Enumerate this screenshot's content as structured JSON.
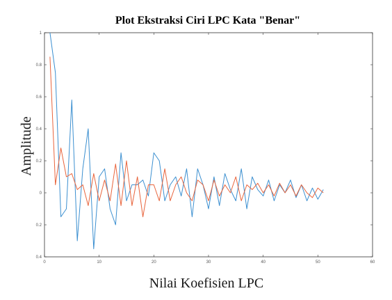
{
  "chart_data": {
    "type": "line",
    "title": "Plot Ekstraksi Ciri LPC Kata \"Benar\"",
    "xlabel": "Nilai Koefisien LPC",
    "ylabel": "Amplitude",
    "xlim": [
      0,
      60
    ],
    "ylim": [
      -0.4,
      1
    ],
    "xticks": [
      0,
      10,
      20,
      30,
      40,
      50,
      60
    ],
    "xtick_labels": [
      "0",
      "10",
      "20",
      "30",
      "40",
      "50",
      "60"
    ],
    "yticks": [
      1,
      0.8,
      0.6,
      0.4,
      0.2,
      0,
      -0.2,
      -0.4
    ],
    "ytick_labels": [
      "1",
      "0.8",
      "0.6",
      "0.4",
      "0.2",
      "0",
      "0.2",
      "0.4"
    ],
    "grid": false,
    "series": [
      {
        "color": "#3b8fd0",
        "x": [
          1,
          2,
          3,
          4,
          5,
          6,
          7,
          8,
          9,
          10,
          11,
          12,
          13,
          14,
          15,
          16,
          17,
          18,
          19,
          20,
          21,
          22,
          23,
          24,
          25,
          26,
          27,
          28,
          29,
          30,
          31,
          32,
          33,
          34,
          35,
          36,
          37,
          38,
          39,
          40,
          41,
          42,
          43,
          44,
          45,
          46,
          47,
          48,
          49,
          50,
          51
        ],
        "values": [
          1.0,
          0.75,
          -0.15,
          -0.1,
          0.58,
          -0.3,
          0.15,
          0.4,
          -0.35,
          0.1,
          0.15,
          -0.1,
          -0.2,
          0.25,
          -0.05,
          0.05,
          0.05,
          0.08,
          -0.02,
          0.25,
          0.2,
          -0.05,
          0.05,
          0.1,
          -0.02,
          0.15,
          -0.15,
          0.15,
          0.05,
          -0.1,
          0.1,
          -0.08,
          0.12,
          0.02,
          -0.05,
          0.15,
          -0.1,
          0.1,
          0.02,
          -0.02,
          0.08,
          -0.05,
          0.05,
          0.0,
          0.08,
          -0.03,
          0.05,
          -0.05,
          0.03,
          -0.04,
          0.02
        ]
      },
      {
        "color": "#e8643c",
        "x": [
          1,
          2,
          3,
          4,
          5,
          6,
          7,
          8,
          9,
          10,
          11,
          12,
          13,
          14,
          15,
          16,
          17,
          18,
          19,
          20,
          21,
          22,
          23,
          24,
          25,
          26,
          27,
          28,
          29,
          30,
          31,
          32,
          33,
          34,
          35,
          36,
          37,
          38,
          39,
          40,
          41,
          42,
          43,
          44,
          45,
          46,
          47,
          48,
          49,
          50,
          51
        ],
        "values": [
          0.85,
          0.05,
          0.28,
          0.1,
          0.12,
          0.02,
          0.05,
          -0.08,
          0.12,
          -0.05,
          0.08,
          -0.05,
          0.18,
          -0.08,
          0.2,
          -0.08,
          0.1,
          -0.15,
          0.05,
          0.05,
          -0.05,
          0.15,
          -0.05,
          0.05,
          0.1,
          0.0,
          -0.05,
          0.08,
          0.05,
          -0.05,
          0.08,
          -0.02,
          0.05,
          0.0,
          0.1,
          -0.05,
          0.05,
          0.02,
          0.06,
          0.0,
          0.05,
          -0.02,
          0.06,
          0.0,
          0.05,
          -0.02,
          0.05,
          0.0,
          -0.03,
          0.03,
          0.0
        ]
      }
    ]
  }
}
